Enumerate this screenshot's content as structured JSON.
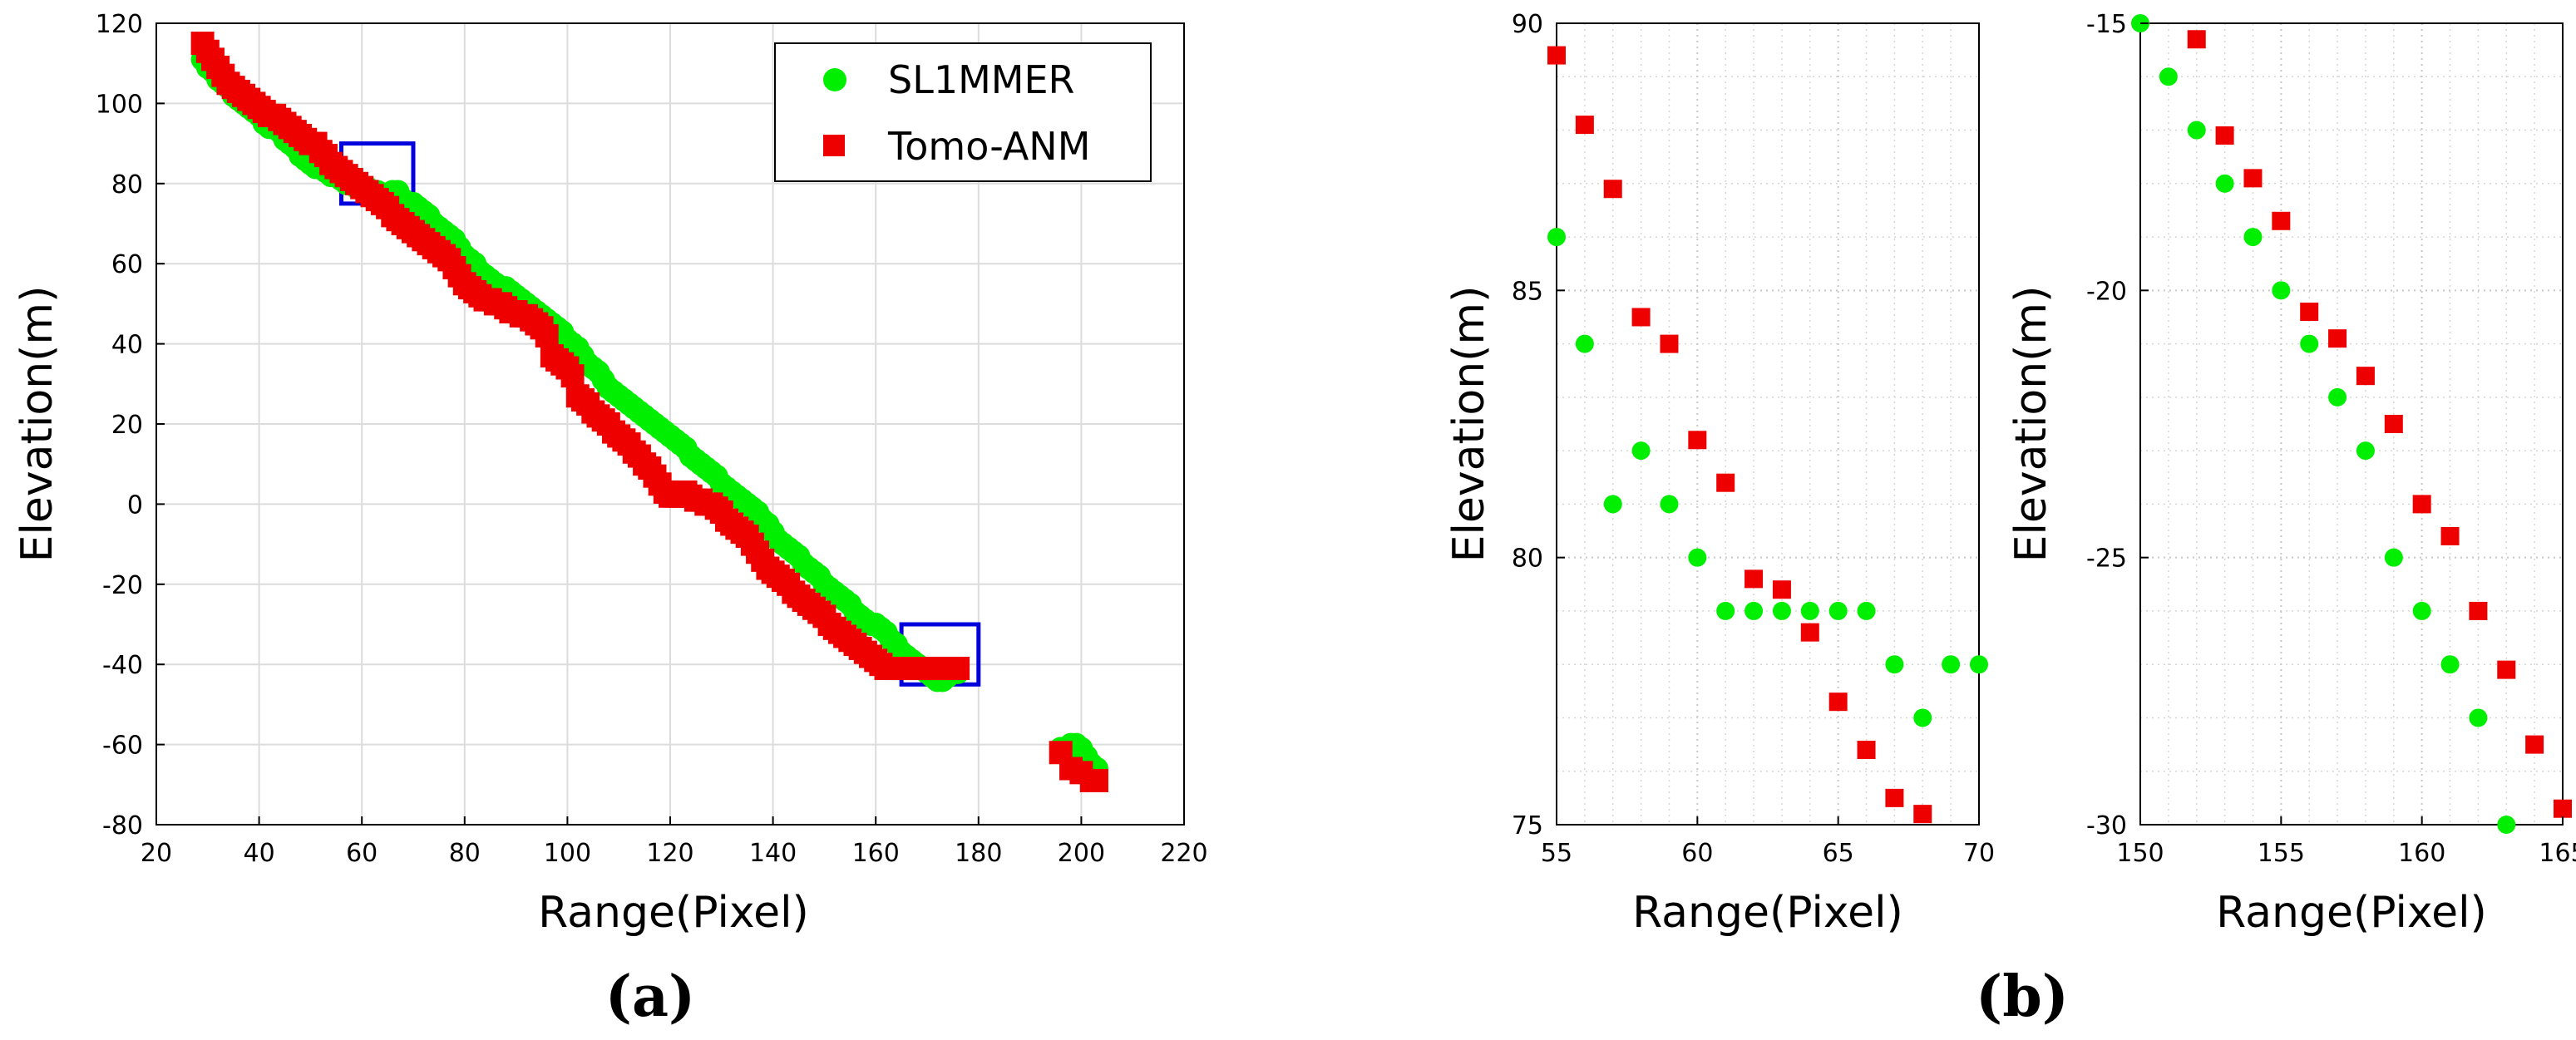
{
  "colors": {
    "sl1mmer": "#00ee00",
    "tomo": "#ee0000",
    "box": "#0000dd",
    "grid": "#dcdcdc"
  },
  "panel_labels": {
    "a": "(a)",
    "b": "(b)"
  },
  "legend": {
    "sl1mmer": "SL1MMER",
    "tomo": "Tomo-ANM"
  },
  "chart_data": [
    {
      "id": "a",
      "type": "scatter",
      "xlabel": "Range(Pixel)",
      "ylabel": "Elevation(m)",
      "xlim": [
        20,
        220
      ],
      "ylim": [
        -80,
        120
      ],
      "xticks": [
        20,
        40,
        60,
        80,
        100,
        120,
        140,
        160,
        180,
        200,
        220
      ],
      "yticks": [
        -80,
        -60,
        -40,
        -20,
        0,
        20,
        40,
        60,
        80,
        100,
        120
      ],
      "grid": true,
      "legend_position": "top-right",
      "highlight_boxes": [
        {
          "x": [
            56,
            70
          ],
          "y": [
            75,
            90
          ]
        },
        {
          "x": [
            165,
            180
          ],
          "y": [
            -45,
            -30
          ]
        }
      ],
      "series": [
        {
          "name": "SL1MMER",
          "marker": "circle",
          "x": [
            29,
            30,
            31,
            32,
            33,
            34,
            35,
            36,
            37,
            38,
            39,
            40,
            41,
            42,
            43,
            44,
            45,
            46,
            47,
            48,
            49,
            50,
            51,
            52,
            53,
            54,
            55,
            56,
            57,
            58,
            59,
            60,
            61,
            62,
            63,
            64,
            65,
            66,
            67,
            68,
            69,
            70,
            71,
            72,
            73,
            74,
            75,
            76,
            77,
            78,
            79,
            80,
            81,
            82,
            83,
            84,
            85,
            86,
            87,
            88,
            89,
            90,
            91,
            92,
            93,
            94,
            95,
            96,
            97,
            98,
            99,
            100,
            101,
            102,
            103,
            104,
            105,
            106,
            107,
            108,
            109,
            110,
            111,
            112,
            113,
            114,
            115,
            116,
            117,
            118,
            119,
            120,
            121,
            122,
            123,
            124,
            125,
            126,
            127,
            128,
            129,
            130,
            131,
            132,
            133,
            134,
            135,
            136,
            137,
            138,
            139,
            140,
            141,
            142,
            143,
            144,
            145,
            146,
            147,
            148,
            149,
            150,
            151,
            152,
            153,
            154,
            155,
            156,
            157,
            158,
            159,
            160,
            161,
            162,
            163,
            164,
            165,
            166,
            167,
            168,
            169,
            170,
            171,
            172,
            173,
            174,
            175,
            176,
            196,
            197,
            198,
            199,
            200,
            201,
            202,
            203
          ],
          "y": [
            111,
            109,
            108,
            106,
            105,
            104,
            102,
            101,
            100,
            99,
            98,
            97,
            95,
            94,
            94,
            93,
            91,
            90,
            89,
            87,
            86,
            85,
            84,
            84,
            83,
            82,
            82,
            81,
            80,
            80,
            79,
            79,
            79,
            78,
            78,
            77,
            77,
            78,
            78,
            76,
            75,
            75,
            74,
            73,
            72,
            70,
            69,
            68,
            67,
            66,
            64,
            62,
            61,
            60,
            58,
            57,
            56,
            55,
            54,
            54,
            53,
            52,
            51,
            50,
            49,
            48,
            47,
            46,
            45,
            44,
            43,
            41,
            40,
            39,
            37,
            35,
            34,
            33,
            31,
            29,
            28,
            27,
            26,
            25,
            24,
            23,
            22,
            21,
            20,
            19,
            18,
            17,
            16,
            15,
            14,
            12,
            11,
            10,
            9,
            8,
            7,
            5,
            4,
            3,
            2,
            1,
            0,
            -1,
            -2,
            -4,
            -5,
            -7,
            -9,
            -10,
            -11,
            -12,
            -13,
            -15,
            -16,
            -17,
            -18,
            -20,
            -21,
            -22,
            -23,
            -24,
            -25,
            -27,
            -28,
            -29,
            -30,
            -30,
            -31,
            -32,
            -34,
            -35,
            -37,
            -38,
            -39,
            -40,
            -41,
            -42,
            -43,
            -44,
            -44,
            -43,
            -42,
            -42,
            -61,
            -61,
            -60,
            -60,
            -61,
            -63,
            -65,
            -66
          ]
        },
        {
          "name": "Tomo-ANM",
          "marker": "square",
          "x": [
            29,
            30,
            31,
            32,
            33,
            34,
            35,
            36,
            37,
            38,
            39,
            40,
            41,
            42,
            43,
            44,
            45,
            46,
            47,
            48,
            49,
            50,
            51,
            52,
            53,
            54,
            55,
            56,
            57,
            58,
            59,
            60,
            61,
            62,
            63,
            64,
            65,
            66,
            67,
            68,
            69,
            70,
            71,
            72,
            73,
            74,
            75,
            76,
            77,
            78,
            79,
            80,
            81,
            82,
            83,
            84,
            85,
            86,
            87,
            88,
            89,
            90,
            91,
            92,
            93,
            94,
            95,
            96,
            97,
            98,
            99,
            100,
            101,
            102,
            103,
            104,
            105,
            106,
            107,
            108,
            109,
            110,
            111,
            112,
            113,
            114,
            115,
            116,
            117,
            118,
            119,
            120,
            121,
            122,
            123,
            124,
            125,
            126,
            127,
            128,
            129,
            130,
            131,
            132,
            133,
            134,
            135,
            136,
            137,
            138,
            139,
            140,
            141,
            142,
            143,
            144,
            145,
            146,
            147,
            148,
            149,
            150,
            151,
            152,
            153,
            154,
            155,
            156,
            157,
            158,
            159,
            160,
            161,
            162,
            163,
            164,
            165,
            166,
            167,
            168,
            169,
            170,
            171,
            172,
            173,
            174,
            175,
            176,
            196,
            198,
            200,
            202,
            203
          ],
          "y": [
            115,
            113,
            111,
            109,
            107,
            105,
            104,
            103,
            102,
            101,
            100,
            99,
            98,
            97,
            97,
            96,
            95,
            94,
            93,
            92,
            91,
            90,
            90,
            88,
            87,
            85,
            84,
            83,
            82,
            81,
            80,
            79,
            78,
            77,
            76,
            75,
            74,
            72,
            71,
            70,
            69,
            68,
            67,
            66,
            65,
            64,
            63,
            62,
            61,
            59,
            57,
            55,
            54,
            53,
            52,
            51,
            51,
            50,
            50,
            49,
            48,
            48,
            47,
            47,
            46,
            45,
            44,
            42,
            37,
            36,
            35,
            34,
            32,
            27,
            26,
            25,
            23,
            22,
            21,
            20,
            18,
            17,
            16,
            15,
            13,
            12,
            10,
            9,
            7,
            5,
            3,
            2,
            2,
            2,
            3,
            2,
            1,
            1,
            0,
            0,
            -1,
            -2,
            -4,
            -5,
            -6,
            -7,
            -8,
            -10,
            -12,
            -14,
            -16,
            -17,
            -18,
            -19,
            -20,
            -22,
            -23,
            -24,
            -25,
            -26,
            -27,
            -28,
            -30,
            -31,
            -32,
            -33,
            -34,
            -35,
            -36,
            -37,
            -38,
            -39,
            -40,
            -41,
            -41,
            -41,
            -41,
            -41,
            -41,
            -41,
            -41,
            -41,
            -41,
            -41,
            -41,
            -41,
            -41,
            -41,
            -62,
            -66,
            -67,
            -69,
            -69
          ]
        }
      ]
    },
    {
      "id": "b1",
      "type": "scatter",
      "xlabel": "Range(Pixel)",
      "ylabel": "Elevation(m)",
      "xlim": [
        55,
        70
      ],
      "ylim": [
        75,
        90
      ],
      "xticks": [
        55,
        60,
        65,
        70
      ],
      "yticks": [
        75,
        80,
        85,
        90
      ],
      "grid": true,
      "series": [
        {
          "name": "SL1MMER",
          "marker": "circle",
          "x": [
            55,
            56,
            57,
            58,
            59,
            60,
            61,
            62,
            63,
            64,
            65,
            66,
            67,
            68,
            69,
            70
          ],
          "y": [
            86,
            84,
            81,
            82,
            81,
            80,
            79,
            79,
            79,
            79,
            79,
            79,
            78,
            77,
            78,
            78
          ]
        },
        {
          "name": "Tomo-ANM",
          "marker": "square",
          "x": [
            55,
            56,
            57,
            58,
            59,
            60,
            61,
            62,
            63,
            64,
            65,
            66,
            67,
            68
          ],
          "y": [
            89.4,
            88.1,
            86.9,
            84.5,
            84,
            82.2,
            81.4,
            79.6,
            79.4,
            78.6,
            77.3,
            76.4,
            75.5,
            75.2
          ]
        }
      ]
    },
    {
      "id": "b2",
      "type": "scatter",
      "xlabel": "Range(Pixel)",
      "ylabel": "Elevation(m)",
      "xlim": [
        150,
        165
      ],
      "ylim": [
        -30,
        -15
      ],
      "xticks": [
        150,
        155,
        160,
        165
      ],
      "yticks": [
        -30,
        -25,
        -20,
        -15
      ],
      "grid": true,
      "series": [
        {
          "name": "SL1MMER",
          "marker": "circle",
          "x": [
            150,
            151,
            152,
            153,
            154,
            155,
            156,
            157,
            158,
            159,
            160,
            161,
            162,
            163
          ],
          "y": [
            -15,
            -16,
            -17,
            -18,
            -19,
            -20,
            -21,
            -22,
            -23,
            -25,
            -26,
            -27,
            -28,
            -30
          ]
        },
        {
          "name": "Tomo-ANM",
          "marker": "square",
          "x": [
            152,
            153,
            154,
            155,
            156,
            157,
            158,
            159,
            160,
            161,
            162,
            163,
            164,
            165
          ],
          "y": [
            -15.3,
            -17.1,
            -17.9,
            -18.7,
            -20.4,
            -20.9,
            -21.6,
            -22.5,
            -24,
            -24.6,
            -26,
            -27.1,
            -28.5,
            -29.7
          ]
        }
      ]
    }
  ]
}
